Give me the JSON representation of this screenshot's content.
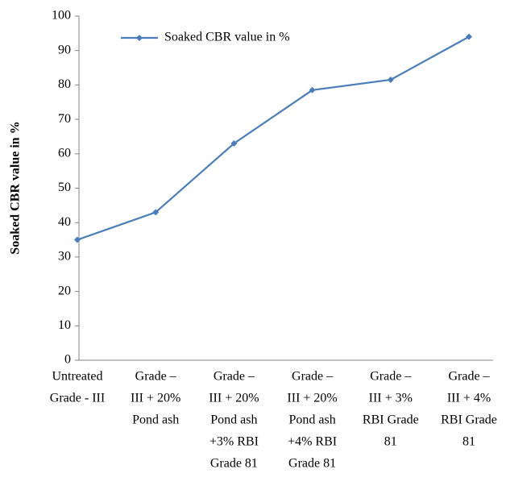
{
  "chart_data": {
    "type": "line",
    "y_label": "Soaked CBR value in %",
    "categories": [
      [
        "Untreated",
        "Grade - III"
      ],
      [
        "Grade –",
        "III + 20%",
        "Pond ash"
      ],
      [
        "Grade –",
        "III + 20%",
        "Pond ash",
        "+3% RBI",
        "Grade 81"
      ],
      [
        "Grade –",
        "III + 20%",
        "Pond ash",
        "+4% RBI",
        "Grade 81"
      ],
      [
        "Grade –",
        "III + 3%",
        "RBI Grade",
        "81"
      ],
      [
        "Grade –",
        "III + 4%",
        "RBI Grade",
        "81"
      ]
    ],
    "series": [
      {
        "name": "Soaked CBR value in %",
        "color": "#4a7ebb",
        "values": [
          35,
          43,
          63,
          78.5,
          81.5,
          94
        ]
      }
    ],
    "ylim": [
      0,
      100
    ],
    "yticks": [
      0,
      10,
      20,
      30,
      40,
      50,
      60,
      70,
      80,
      90,
      100
    ],
    "legend": "top-left"
  }
}
